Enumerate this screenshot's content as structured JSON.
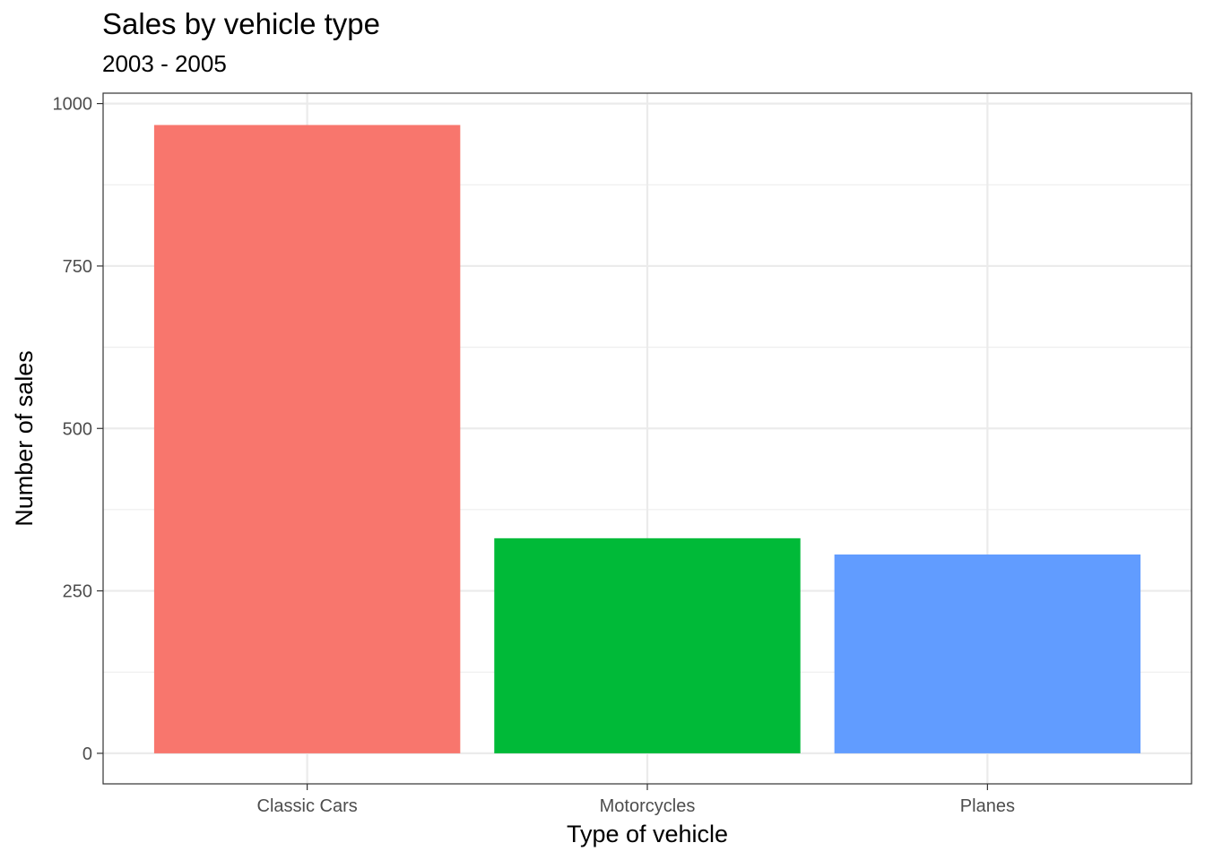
{
  "chart_data": {
    "type": "bar",
    "title": "Sales by vehicle type",
    "subtitle": "2003 - 2005",
    "xlabel": "Type of vehicle",
    "ylabel": "Number of sales",
    "categories": [
      "Classic Cars",
      "Motorcycles",
      "Planes"
    ],
    "values": [
      967,
      331,
      306
    ],
    "colors": [
      "#f8766d",
      "#00ba38",
      "#619cff"
    ],
    "ylim": [
      -47,
      1016
    ],
    "yticks": [
      0,
      250,
      500,
      750,
      1000
    ],
    "ytick_labels": [
      "0",
      "250",
      "500",
      "750",
      "1000"
    ],
    "grid": true,
    "legend": "none"
  }
}
